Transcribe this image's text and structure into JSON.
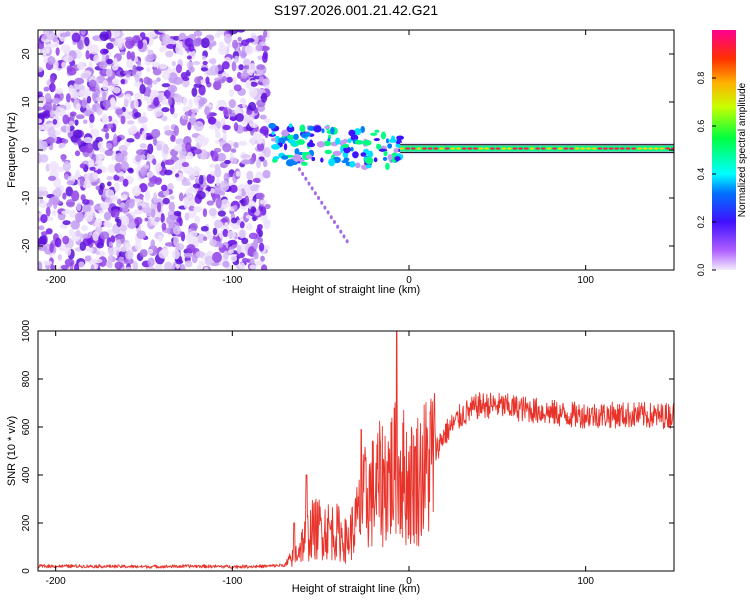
{
  "figure_title": "S197.2026.001.21.42.G21",
  "colors": {
    "snr_line": "#e8332b",
    "axis": "#000000",
    "noise_purple": "#8a2be2",
    "colormap": [
      "#dcc8f5",
      "#9b30ff",
      "#3c14ff",
      "#0080ff",
      "#00ffff",
      "#00ff60",
      "#c8ff00",
      "#ffd000",
      "#ff4000",
      "#ff0060",
      "#ff0090"
    ]
  },
  "chart_data": [
    {
      "type": "heatmap",
      "title": "",
      "xlabel": "Height of straight line (km)",
      "ylabel": "Frequency (Hz)",
      "xlim": [
        -210,
        150
      ],
      "ylim": [
        -25,
        25
      ],
      "xticks": [
        -200,
        -100,
        0,
        100
      ],
      "yticks": [
        -20,
        -10,
        0,
        10,
        20
      ],
      "colorbar": {
        "label": "Normalized spectral amplitude",
        "range": [
          0,
          1
        ],
        "ticks": [
          0.0,
          0.2,
          0.4,
          0.6,
          0.8
        ]
      },
      "regions": [
        {
          "name": "noise",
          "x_range": [
            -210,
            -80
          ],
          "description_level": "low amplitude random"
        },
        {
          "name": "transition",
          "x_range": [
            -80,
            -5
          ]
        },
        {
          "name": "signal",
          "x_range": [
            -5,
            150
          ],
          "frequency_hz": 0.3
        }
      ]
    },
    {
      "type": "line",
      "title": "",
      "xlabel": "Height of straight line (km)",
      "ylabel": "SNR (10 * v/v)",
      "xlim": [
        -210,
        150
      ],
      "ylim": [
        0,
        1000
      ],
      "xticks": [
        -200,
        -100,
        0,
        100
      ],
      "yticks": [
        0,
        200,
        400,
        600,
        800,
        1000
      ],
      "series": [
        {
          "name": "SNR",
          "color": "#e8332b",
          "x": [
            -210,
            -180,
            -150,
            -120,
            -100,
            -80,
            -70,
            -65,
            -60,
            -55,
            -50,
            -45,
            -40,
            -35,
            -30,
            -25,
            -20,
            -15,
            -10,
            -5,
            0,
            5,
            10,
            15,
            20,
            25,
            30,
            40,
            50,
            60,
            70,
            80,
            90,
            100,
            110,
            120,
            130,
            140,
            150
          ],
          "y": [
            20,
            20,
            18,
            20,
            18,
            20,
            25,
            60,
            120,
            170,
            180,
            170,
            160,
            120,
            200,
            300,
            330,
            370,
            400,
            420,
            360,
            390,
            430,
            500,
            570,
            610,
            650,
            690,
            690,
            680,
            670,
            660,
            650,
            650,
            650,
            650,
            650,
            645,
            650
          ]
        }
      ],
      "spikes": [
        {
          "x": -65,
          "y": 200
        },
        {
          "x": -58,
          "y": 400
        },
        {
          "x": -27,
          "y": 590
        },
        {
          "x": -7,
          "y": 1000
        }
      ]
    }
  ]
}
